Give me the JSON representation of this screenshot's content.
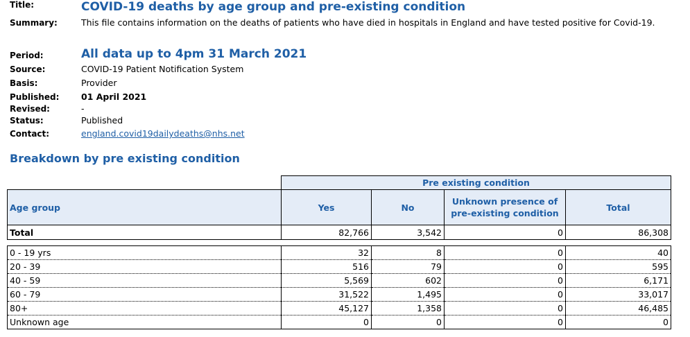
{
  "meta": {
    "title_label": "Title:",
    "title": "COVID-19 deaths by age group and pre-existing condition",
    "summary_label": "Summary:",
    "summary": "This file contains information on the deaths of patients who have died in hospitals in England and have tested positive for Covid-19.",
    "period_label": "Period:",
    "period": "All data up to 4pm 31 March 2021",
    "source_label": "Source:",
    "source": "COVID-19 Patient Notification System",
    "basis_label": "Basis:",
    "basis": "Provider",
    "published_label": "Published:",
    "published": "01 April 2021",
    "revised_label": "Revised:",
    "revised": "-",
    "status_label": "Status:",
    "status": "Published",
    "contact_label": "Contact:",
    "contact": "england.covid19dailydeaths@nhs.net"
  },
  "section_title": "Breakdown by pre existing condition",
  "table": {
    "group_header": "Pre existing condition",
    "headers": {
      "age_group": "Age group",
      "yes": "Yes",
      "no": "No",
      "unknown_line1": "Unknown presence of",
      "unknown_line2": "pre-existing condition",
      "total": "Total"
    },
    "total_row": {
      "label": "Total",
      "yes": "82,766",
      "no": "3,542",
      "unknown": "0",
      "total": "86,308"
    },
    "rows": [
      {
        "label": "0 - 19 yrs",
        "yes": "32",
        "no": "8",
        "unknown": "0",
        "total": "40"
      },
      {
        "label": "20 - 39",
        "yes": "516",
        "no": "79",
        "unknown": "0",
        "total": "595"
      },
      {
        "label": "40 - 59",
        "yes": "5,569",
        "no": "602",
        "unknown": "0",
        "total": "6,171"
      },
      {
        "label": "60 - 79",
        "yes": "31,522",
        "no": "1,495",
        "unknown": "0",
        "total": "33,017"
      },
      {
        "label": "80+",
        "yes": "45,127",
        "no": "1,358",
        "unknown": "0",
        "total": "46,485"
      },
      {
        "label": "Unknown age",
        "yes": "0",
        "no": "0",
        "unknown": "0",
        "total": "0"
      }
    ]
  }
}
